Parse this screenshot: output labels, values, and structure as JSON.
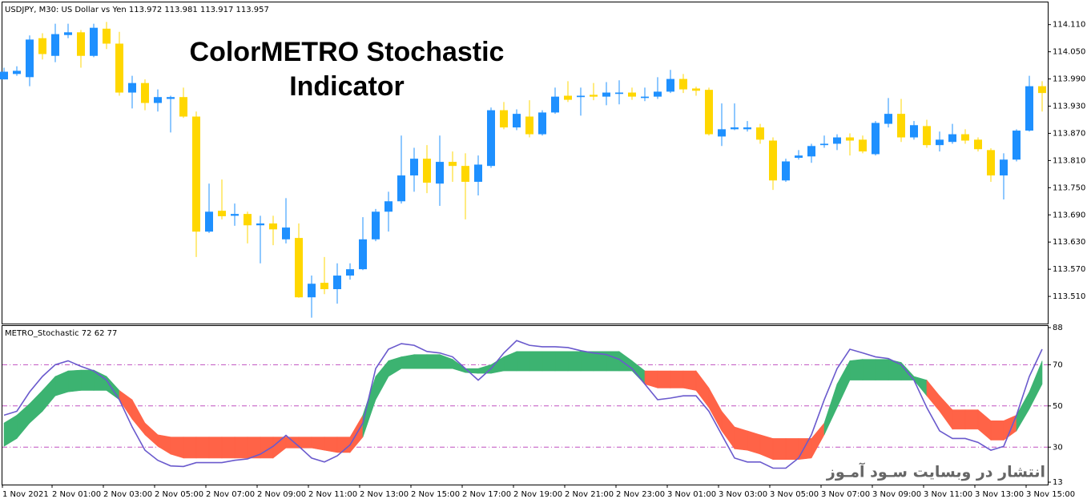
{
  "chart_data": [
    {
      "type": "candlestick",
      "header": "USDJPY, M30:  US Dollar vs Yen  113.972 113.981 113.917 113.957",
      "title_lines": [
        "ColorMETRO Stochastic",
        "Indicator"
      ],
      "up_color": "#1e90ff",
      "down_color": "#ffd700",
      "ylim": [
        113.45,
        114.159
      ],
      "yticks": [
        {
          "value": 114.11,
          "label": "114.110"
        },
        {
          "value": 114.05,
          "label": "114.050"
        },
        {
          "value": 113.99,
          "label": "113.990"
        },
        {
          "value": 113.93,
          "label": "113.930"
        },
        {
          "value": 113.87,
          "label": "113.870"
        },
        {
          "value": 113.81,
          "label": "113.810"
        },
        {
          "value": 113.75,
          "label": "113.750"
        },
        {
          "value": 113.69,
          "label": "113.690"
        },
        {
          "value": 113.63,
          "label": "113.630"
        },
        {
          "value": 113.57,
          "label": "113.570"
        },
        {
          "value": 113.51,
          "label": "113.510"
        }
      ],
      "open": [
        113.989,
        114.001,
        113.994,
        114.08,
        114.041,
        114.087,
        114.093,
        114.041,
        114.101,
        114.068,
        113.96,
        113.981,
        113.937,
        113.946,
        113.95,
        113.907,
        113.653,
        113.699,
        113.688,
        113.692,
        113.667,
        113.671,
        113.636,
        113.639,
        113.508,
        113.54,
        113.526,
        113.556,
        113.57,
        113.636,
        113.697,
        113.72,
        113.777,
        113.814,
        113.759,
        113.807,
        113.798,
        113.763,
        113.798,
        113.921,
        113.883,
        113.907,
        113.868,
        113.916,
        113.953,
        113.95,
        113.955,
        113.951,
        113.957,
        113.96,
        113.948,
        113.951,
        113.962,
        113.99,
        113.969,
        113.966,
        113.863,
        113.879,
        113.879,
        113.883,
        113.854,
        113.766,
        113.816,
        113.819,
        113.844,
        113.847,
        113.861,
        113.856,
        113.824,
        113.891,
        113.913,
        113.861,
        113.886,
        113.844,
        113.851,
        113.868,
        113.856,
        113.833,
        113.777,
        113.812,
        113.876,
        113.974
      ],
      "high": [
        114.015,
        114.018,
        114.086,
        114.091,
        114.112,
        114.112,
        114.098,
        114.112,
        114.116,
        114.094,
        113.997,
        113.989,
        113.967,
        113.953,
        113.971,
        113.918,
        113.759,
        113.768,
        113.715,
        113.697,
        113.688,
        113.688,
        113.727,
        113.671,
        113.556,
        113.597,
        113.583,
        113.583,
        113.685,
        113.703,
        113.741,
        113.865,
        113.838,
        113.844,
        113.865,
        113.83,
        113.826,
        113.821,
        113.927,
        113.939,
        113.923,
        113.943,
        113.921,
        113.971,
        113.985,
        113.971,
        113.981,
        113.983,
        113.987,
        113.971,
        113.971,
        113.994,
        114.01,
        114.001,
        113.973,
        113.971,
        113.936,
        113.936,
        113.897,
        113.891,
        113.861,
        113.814,
        113.833,
        113.847,
        113.865,
        113.868,
        113.87,
        113.865,
        113.897,
        113.948,
        113.946,
        113.897,
        113.9,
        113.874,
        113.891,
        113.879,
        113.861,
        113.837,
        113.826,
        113.879,
        113.997,
        113.985
      ],
      "low": [
        113.989,
        113.997,
        113.974,
        114.033,
        114.027,
        114.08,
        114.015,
        114.038,
        114.056,
        113.953,
        113.925,
        113.921,
        113.918,
        113.872,
        113.904,
        113.597,
        113.65,
        113.68,
        113.666,
        113.627,
        113.583,
        113.623,
        113.627,
        113.507,
        113.463,
        113.515,
        113.494,
        113.547,
        113.568,
        113.632,
        113.653,
        113.715,
        113.741,
        113.738,
        113.71,
        113.763,
        113.68,
        113.733,
        113.794,
        113.879,
        113.877,
        113.861,
        113.865,
        113.913,
        113.939,
        113.909,
        113.943,
        113.932,
        113.934,
        113.944,
        113.941,
        113.946,
        113.959,
        113.959,
        113.953,
        113.865,
        113.842,
        113.877,
        113.874,
        113.847,
        113.745,
        113.763,
        113.812,
        113.805,
        113.838,
        113.833,
        113.821,
        113.826,
        113.821,
        113.883,
        113.851,
        113.856,
        113.838,
        113.83,
        113.847,
        113.847,
        113.83,
        113.763,
        113.724,
        113.808,
        113.874,
        113.918
      ],
      "close": [
        114.006,
        114.008,
        114.077,
        114.045,
        114.089,
        114.093,
        114.041,
        114.103,
        114.068,
        113.96,
        113.981,
        113.937,
        113.95,
        113.95,
        113.907,
        113.653,
        113.697,
        113.687,
        113.692,
        113.667,
        113.671,
        113.658,
        113.662,
        113.508,
        113.538,
        113.526,
        113.556,
        113.57,
        113.636,
        113.697,
        113.72,
        113.777,
        113.814,
        113.761,
        113.807,
        113.798,
        113.763,
        113.801,
        113.921,
        113.883,
        113.913,
        113.868,
        113.916,
        113.951,
        113.944,
        113.953,
        113.951,
        113.96,
        113.96,
        113.951,
        113.951,
        113.962,
        113.99,
        113.967,
        113.964,
        113.868,
        113.879,
        113.883,
        113.883,
        113.856,
        113.766,
        113.808,
        113.821,
        113.842,
        113.847,
        113.861,
        113.854,
        113.83,
        113.893,
        113.913,
        113.861,
        113.888,
        113.844,
        113.856,
        113.868,
        113.854,
        113.835,
        113.777,
        113.812,
        113.876,
        113.974,
        113.959
      ]
    },
    {
      "type": "color_stochastic",
      "header": "METRO_Stochastic 72 62 77",
      "ylim": [
        13,
        88
      ],
      "yticks": [
        13,
        30,
        50,
        70,
        88
      ],
      "levels": [
        30,
        50,
        70
      ],
      "level_color": "#c050c0",
      "line_color": "#6a5acd",
      "line": [
        45.5,
        47.4,
        56.8,
        64.3,
        70,
        71.9,
        69.2,
        67,
        62.5,
        53,
        39.8,
        28.5,
        23.6,
        20.9,
        20.6,
        22.5,
        22.5,
        22.5,
        23.6,
        24.3,
        26.6,
        30.4,
        35.7,
        30.4,
        24.7,
        22.8,
        25.8,
        31.1,
        41.7,
        68.1,
        77.5,
        80.2,
        79.4,
        76.4,
        75.7,
        73.8,
        68.1,
        62.5,
        68.1,
        75.7,
        81.7,
        79.4,
        78.7,
        78.7,
        78.3,
        76.8,
        75.7,
        74.9,
        72.6,
        68.1,
        60.6,
        53,
        53.8,
        54.9,
        54.9,
        47.4,
        36,
        24.7,
        22.8,
        22.8,
        19.8,
        19.8,
        24.7,
        36,
        53,
        68.1,
        77.5,
        75.7,
        73.8,
        73,
        70,
        62.5,
        49.2,
        37.9,
        34.2,
        34.2,
        32.3,
        28.5,
        30.4,
        45.5,
        64.3,
        77.5
      ],
      "band_upper": [
        41.7,
        45.5,
        51.1,
        57.5,
        64.3,
        67,
        67.4,
        67.4,
        64.3,
        57.5,
        53,
        41.7,
        36,
        34.9,
        34.9,
        34.9,
        34.9,
        34.9,
        34.9,
        34.9,
        34.9,
        34.9,
        34.9,
        34.9,
        34.9,
        34.9,
        34.9,
        34.9,
        45.5,
        64.3,
        71.9,
        73.8,
        74.9,
        74.9,
        74.9,
        72.6,
        68.1,
        68.1,
        70,
        73.8,
        76.4,
        76.4,
        76.4,
        76.4,
        76.4,
        76.4,
        76.4,
        76.4,
        76.4,
        71.9,
        67,
        67,
        67,
        67,
        67,
        58.7,
        47.4,
        39.8,
        37.9,
        36,
        34.2,
        34.2,
        34.2,
        34.2,
        41.7,
        60.6,
        71.9,
        72.6,
        72.6,
        72.6,
        71.1,
        64.3,
        62.5,
        54.9,
        48.1,
        48.1,
        48.1,
        42.8,
        42.8,
        45.5,
        56.8,
        71.9
      ],
      "band_lower": [
        30.4,
        34.2,
        41.7,
        47.4,
        54.9,
        56.8,
        57.5,
        57.5,
        57.5,
        53,
        43.6,
        36,
        30.4,
        26.6,
        24.7,
        24.7,
        24.7,
        24.7,
        24.7,
        24.7,
        24.7,
        24.7,
        29.6,
        29.6,
        29.6,
        28.5,
        27.4,
        27.4,
        34.9,
        53,
        64.3,
        68.1,
        68.1,
        68.1,
        68.1,
        68.1,
        66.2,
        65.8,
        65.8,
        67,
        67,
        67,
        67,
        67,
        67,
        67,
        67,
        67,
        67,
        67,
        60.6,
        58.7,
        58.7,
        58.7,
        57.5,
        49.2,
        37.9,
        29.2,
        28.5,
        26.6,
        24,
        24,
        24,
        24.7,
        36,
        49.2,
        62.5,
        62.5,
        62.5,
        62.5,
        62.5,
        62.5,
        54.9,
        47.4,
        38.7,
        38.7,
        38.7,
        33.4,
        33.4,
        37.9,
        48.5,
        60.6
      ],
      "band_colors": [
        "#3cb371",
        "#3cb371",
        "#3cb371",
        "#3cb371",
        "#3cb371",
        "#3cb371",
        "#3cb371",
        "#3cb371",
        "#3cb371",
        "#ff6347",
        "#ff6347",
        "#ff6347",
        "#ff6347",
        "#ff6347",
        "#ff6347",
        "#ff6347",
        "#ff6347",
        "#ff6347",
        "#ff6347",
        "#ff6347",
        "#ff6347",
        "#ff6347",
        "#ff6347",
        "#ff6347",
        "#ff6347",
        "#ff6347",
        "#ff6347",
        "#ff6347",
        "#3cb371",
        "#3cb371",
        "#3cb371",
        "#3cb371",
        "#3cb371",
        "#3cb371",
        "#3cb371",
        "#3cb371",
        "#3cb371",
        "#3cb371",
        "#3cb371",
        "#3cb371",
        "#3cb371",
        "#3cb371",
        "#3cb371",
        "#3cb371",
        "#3cb371",
        "#3cb371",
        "#3cb371",
        "#3cb371",
        "#3cb371",
        "#3cb371",
        "#ff6347",
        "#ff6347",
        "#ff6347",
        "#ff6347",
        "#ff6347",
        "#ff6347",
        "#ff6347",
        "#ff6347",
        "#ff6347",
        "#ff6347",
        "#ff6347",
        "#ff6347",
        "#ff6347",
        "#ff6347",
        "#3cb371",
        "#3cb371",
        "#3cb371",
        "#3cb371",
        "#3cb371",
        "#3cb371",
        "#3cb371",
        "#3cb371",
        "#ff6347",
        "#ff6347",
        "#ff6347",
        "#ff6347",
        "#ff6347",
        "#ff6347",
        "#ff6347",
        "#3cb371",
        "#3cb371",
        "#3cb371"
      ],
      "x_labels": [
        "1 Nov 2021",
        "2 Nov 01:00",
        "2 Nov 03:00",
        "2 Nov 05:00",
        "2 Nov 07:00",
        "2 Nov 09:00",
        "2 Nov 11:00",
        "2 Nov 13:00",
        "2 Nov 15:00",
        "2 Nov 17:00",
        "2 Nov 19:00",
        "2 Nov 21:00",
        "2 Nov 23:00",
        "3 Nov 01:00",
        "3 Nov 03:00",
        "3 Nov 05:00",
        "3 Nov 07:00",
        "3 Nov 09:00",
        "3 Nov 11:00",
        "3 Nov 13:00",
        "3 Nov 15:00"
      ]
    }
  ],
  "watermark": "انتشار در وبسایت  سـود آمـوز"
}
